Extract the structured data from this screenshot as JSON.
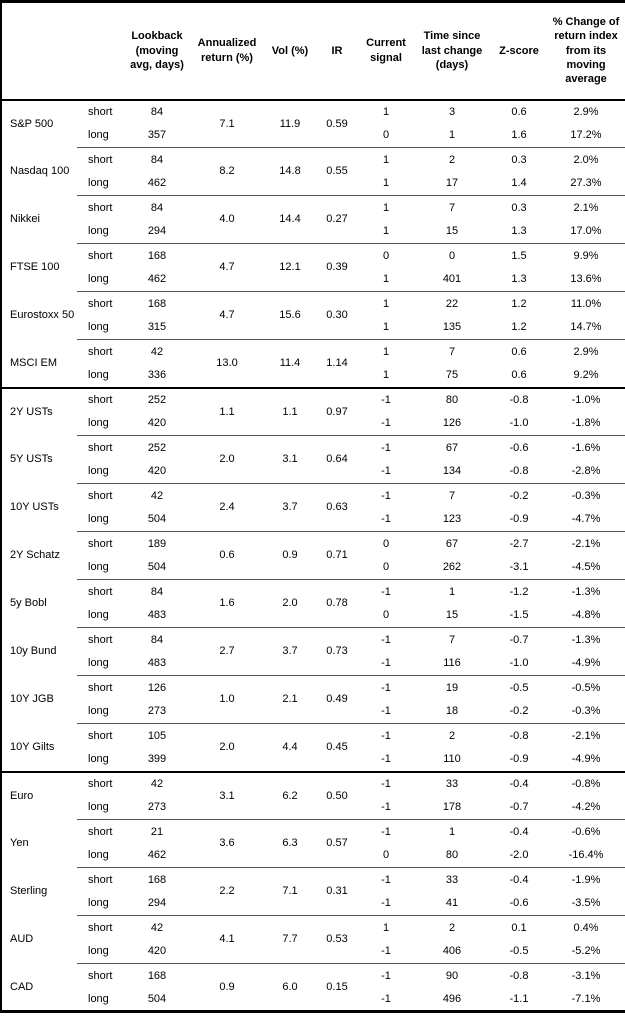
{
  "table": {
    "row_labels": {
      "short": "short",
      "long": "long"
    },
    "headers": [
      "",
      "",
      "Lookback (moving avg, days)",
      "Annualized return (%)",
      "Vol (%)",
      "IR",
      "Current signal",
      "Time since last change (days)",
      "Z-score",
      "% Change of return index from its moving average"
    ],
    "groups": [
      [
        {
          "asset": "S&P 500",
          "lookback": {
            "short": "84",
            "long": "357"
          },
          "annualized_return": "7.1",
          "vol": "11.9",
          "ir": "0.59",
          "signal": {
            "short": "1",
            "long": "0"
          },
          "time_since_change": {
            "short": "3",
            "long": "1"
          },
          "z_score": {
            "short": "0.6",
            "long": "1.6"
          },
          "pct_change": {
            "short": "2.9%",
            "long": "17.2%"
          }
        },
        {
          "asset": "Nasdaq 100",
          "lookback": {
            "short": "84",
            "long": "462"
          },
          "annualized_return": "8.2",
          "vol": "14.8",
          "ir": "0.55",
          "signal": {
            "short": "1",
            "long": "1"
          },
          "time_since_change": {
            "short": "2",
            "long": "17"
          },
          "z_score": {
            "short": "0.3",
            "long": "1.4"
          },
          "pct_change": {
            "short": "2.0%",
            "long": "27.3%"
          }
        },
        {
          "asset": "Nikkei",
          "lookback": {
            "short": "84",
            "long": "294"
          },
          "annualized_return": "4.0",
          "vol": "14.4",
          "ir": "0.27",
          "signal": {
            "short": "1",
            "long": "1"
          },
          "time_since_change": {
            "short": "7",
            "long": "15"
          },
          "z_score": {
            "short": "0.3",
            "long": "1.3"
          },
          "pct_change": {
            "short": "2.1%",
            "long": "17.0%"
          }
        },
        {
          "asset": "FTSE 100",
          "lookback": {
            "short": "168",
            "long": "462"
          },
          "annualized_return": "4.7",
          "vol": "12.1",
          "ir": "0.39",
          "signal": {
            "short": "0",
            "long": "1"
          },
          "time_since_change": {
            "short": "0",
            "long": "401"
          },
          "z_score": {
            "short": "1.5",
            "long": "1.3"
          },
          "pct_change": {
            "short": "9.9%",
            "long": "13.6%"
          }
        },
        {
          "asset": "Eurostoxx 50",
          "lookback": {
            "short": "168",
            "long": "315"
          },
          "annualized_return": "4.7",
          "vol": "15.6",
          "ir": "0.30",
          "signal": {
            "short": "1",
            "long": "1"
          },
          "time_since_change": {
            "short": "22",
            "long": "135"
          },
          "z_score": {
            "short": "1.2",
            "long": "1.2"
          },
          "pct_change": {
            "short": "11.0%",
            "long": "14.7%"
          }
        },
        {
          "asset": "MSCI EM",
          "lookback": {
            "short": "42",
            "long": "336"
          },
          "annualized_return": "13.0",
          "vol": "11.4",
          "ir": "1.14",
          "signal": {
            "short": "1",
            "long": "1"
          },
          "time_since_change": {
            "short": "7",
            "long": "75"
          },
          "z_score": {
            "short": "0.6",
            "long": "0.6"
          },
          "pct_change": {
            "short": "2.9%",
            "long": "9.2%"
          }
        }
      ],
      [
        {
          "asset": "2Y USTs",
          "lookback": {
            "short": "252",
            "long": "420"
          },
          "annualized_return": "1.1",
          "vol": "1.1",
          "ir": "0.97",
          "signal": {
            "short": "-1",
            "long": "-1"
          },
          "time_since_change": {
            "short": "80",
            "long": "126"
          },
          "z_score": {
            "short": "-0.8",
            "long": "-1.0"
          },
          "pct_change": {
            "short": "-1.0%",
            "long": "-1.8%"
          }
        },
        {
          "asset": "5Y USTs",
          "lookback": {
            "short": "252",
            "long": "420"
          },
          "annualized_return": "2.0",
          "vol": "3.1",
          "ir": "0.64",
          "signal": {
            "short": "-1",
            "long": "-1"
          },
          "time_since_change": {
            "short": "67",
            "long": "134"
          },
          "z_score": {
            "short": "-0.6",
            "long": "-0.8"
          },
          "pct_change": {
            "short": "-1.6%",
            "long": "-2.8%"
          }
        },
        {
          "asset": "10Y USTs",
          "lookback": {
            "short": "42",
            "long": "504"
          },
          "annualized_return": "2.4",
          "vol": "3.7",
          "ir": "0.63",
          "signal": {
            "short": "-1",
            "long": "-1"
          },
          "time_since_change": {
            "short": "7",
            "long": "123"
          },
          "z_score": {
            "short": "-0.2",
            "long": "-0.9"
          },
          "pct_change": {
            "short": "-0.3%",
            "long": "-4.7%"
          }
        },
        {
          "asset": "2Y Schatz",
          "lookback": {
            "short": "189",
            "long": "504"
          },
          "annualized_return": "0.6",
          "vol": "0.9",
          "ir": "0.71",
          "signal": {
            "short": "0",
            "long": "0"
          },
          "time_since_change": {
            "short": "67",
            "long": "262"
          },
          "z_score": {
            "short": "-2.7",
            "long": "-3.1"
          },
          "pct_change": {
            "short": "-2.1%",
            "long": "-4.5%"
          }
        },
        {
          "asset": "5y Bobl",
          "lookback": {
            "short": "84",
            "long": "483"
          },
          "annualized_return": "1.6",
          "vol": "2.0",
          "ir": "0.78",
          "signal": {
            "short": "-1",
            "long": "0"
          },
          "time_since_change": {
            "short": "1",
            "long": "15"
          },
          "z_score": {
            "short": "-1.2",
            "long": "-1.5"
          },
          "pct_change": {
            "short": "-1.3%",
            "long": "-4.8%"
          }
        },
        {
          "asset": "10y Bund",
          "lookback": {
            "short": "84",
            "long": "483"
          },
          "annualized_return": "2.7",
          "vol": "3.7",
          "ir": "0.73",
          "signal": {
            "short": "-1",
            "long": "-1"
          },
          "time_since_change": {
            "short": "7",
            "long": "116"
          },
          "z_score": {
            "short": "-0.7",
            "long": "-1.0"
          },
          "pct_change": {
            "short": "-1.3%",
            "long": "-4.9%"
          }
        },
        {
          "asset": "10Y JGB",
          "lookback": {
            "short": "126",
            "long": "273"
          },
          "annualized_return": "1.0",
          "vol": "2.1",
          "ir": "0.49",
          "signal": {
            "short": "-1",
            "long": "-1"
          },
          "time_since_change": {
            "short": "19",
            "long": "18"
          },
          "z_score": {
            "short": "-0.5",
            "long": "-0.2"
          },
          "pct_change": {
            "short": "-0.5%",
            "long": "-0.3%"
          }
        },
        {
          "asset": "10Y Gilts",
          "lookback": {
            "short": "105",
            "long": "399"
          },
          "annualized_return": "2.0",
          "vol": "4.4",
          "ir": "0.45",
          "signal": {
            "short": "-1",
            "long": "-1"
          },
          "time_since_change": {
            "short": "2",
            "long": "110"
          },
          "z_score": {
            "short": "-0.8",
            "long": "-0.9"
          },
          "pct_change": {
            "short": "-2.1%",
            "long": "-4.9%"
          }
        }
      ],
      [
        {
          "asset": "Euro",
          "lookback": {
            "short": "42",
            "long": "273"
          },
          "annualized_return": "3.1",
          "vol": "6.2",
          "ir": "0.50",
          "signal": {
            "short": "-1",
            "long": "-1"
          },
          "time_since_change": {
            "short": "33",
            "long": "178"
          },
          "z_score": {
            "short": "-0.4",
            "long": "-0.7"
          },
          "pct_change": {
            "short": "-0.8%",
            "long": "-4.2%"
          }
        },
        {
          "asset": "Yen",
          "lookback": {
            "short": "21",
            "long": "462"
          },
          "annualized_return": "3.6",
          "vol": "6.3",
          "ir": "0.57",
          "signal": {
            "short": "-1",
            "long": "0"
          },
          "time_since_change": {
            "short": "1",
            "long": "80"
          },
          "z_score": {
            "short": "-0.4",
            "long": "-2.0"
          },
          "pct_change": {
            "short": "-0.6%",
            "long": "-16.4%"
          }
        },
        {
          "asset": "Sterling",
          "lookback": {
            "short": "168",
            "long": "294"
          },
          "annualized_return": "2.2",
          "vol": "7.1",
          "ir": "0.31",
          "signal": {
            "short": "-1",
            "long": "-1"
          },
          "time_since_change": {
            "short": "33",
            "long": "41"
          },
          "z_score": {
            "short": "-0.4",
            "long": "-0.6"
          },
          "pct_change": {
            "short": "-1.9%",
            "long": "-3.5%"
          }
        },
        {
          "asset": "AUD",
          "lookback": {
            "short": "42",
            "long": "420"
          },
          "annualized_return": "4.1",
          "vol": "7.7",
          "ir": "0.53",
          "signal": {
            "short": "1",
            "long": "-1"
          },
          "time_since_change": {
            "short": "2",
            "long": "406"
          },
          "z_score": {
            "short": "0.1",
            "long": "-0.5"
          },
          "pct_change": {
            "short": "0.4%",
            "long": "-5.2%"
          }
        },
        {
          "asset": "CAD",
          "lookback": {
            "short": "168",
            "long": "504"
          },
          "annualized_return": "0.9",
          "vol": "6.0",
          "ir": "0.15",
          "signal": {
            "short": "-1",
            "long": "-1"
          },
          "time_since_change": {
            "short": "90",
            "long": "496"
          },
          "z_score": {
            "short": "-0.8",
            "long": "-1.1"
          },
          "pct_change": {
            "short": "-3.1%",
            "long": "-7.1%"
          }
        }
      ]
    ]
  }
}
